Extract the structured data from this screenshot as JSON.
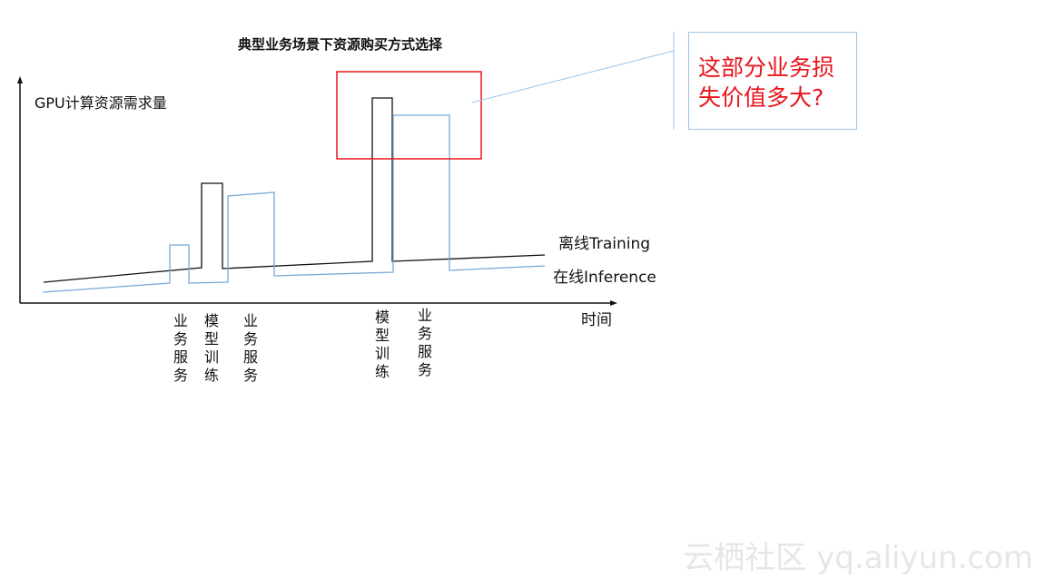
{
  "title": "典型业务场景下资源购买方式选择",
  "y_axis_label": "GPU计算资源需求量",
  "x_axis_label": "时间",
  "legend": {
    "training": "离线Training",
    "inference": "在线Inference"
  },
  "event_labels": [
    "业务服务",
    "模型训练",
    "业务服务",
    "模型训练",
    "业务服务"
  ],
  "callout_text": "这部分业务损失价值多大?",
  "watermark": "云栖社区 yq.aliyun.com",
  "colors": {
    "training": "#111111",
    "inference": "#7aa6d6",
    "highlight": "#e8141b",
    "callout_border": "#9dc3e6"
  }
}
